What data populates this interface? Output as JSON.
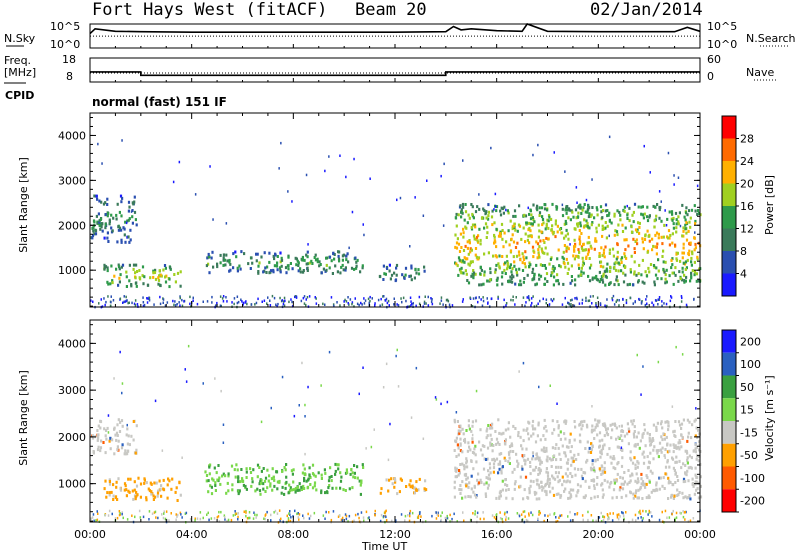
{
  "header": {
    "station": "Fort Hays West (fitACF)",
    "beam": "Beam 20",
    "date": "02/Jan/2014"
  },
  "side_labels": {
    "nsky": "N.Sky",
    "nsearch": "N.Search",
    "freq": "Freq.",
    "freq_unit": "[MHz]",
    "cpid": "CPID",
    "nave": "Nave",
    "noise_max": "10^5",
    "noise_min": "10^0",
    "freq_max": "18",
    "freq_min": "8",
    "nave_max": "60",
    "nave_min": "0"
  },
  "mode_text": "normal (fast) 151 IF",
  "colors": {
    "power": [
      "#1a1aff",
      "#2a4fb0",
      "#3a7a5a",
      "#2e9a4a",
      "#a0d020",
      "#ffb000",
      "#ff6a00",
      "#ff0000"
    ],
    "velocity": [
      "#ff0000",
      "#ff5a00",
      "#ffa000",
      "#c8c8c4",
      "#7ad84a",
      "#3aa040",
      "#2a60c0",
      "#1a1aff"
    ]
  },
  "chart_data": [
    {
      "type": "line",
      "title": "",
      "xlabel": "",
      "ylabel": "",
      "xlim": [
        "00:00",
        "24:00"
      ],
      "y_scale": "log",
      "ylim": [
        1,
        100000
      ],
      "series": [
        {
          "name": "N.Sky",
          "x": [
            0,
            0.2,
            1,
            2,
            4,
            6,
            8,
            10,
            12,
            14,
            14.3,
            14.6,
            15,
            16,
            17,
            17.2,
            18,
            20,
            22,
            23,
            23.5,
            24
          ],
          "values": [
            1000,
            10000,
            3000,
            2500,
            2000,
            2000,
            2000,
            2000,
            2000,
            2500,
            30000,
            6000,
            10000,
            4000,
            3000,
            100000,
            3000,
            2500,
            2500,
            2500,
            20000,
            3000
          ]
        }
      ]
    },
    {
      "type": "line",
      "title": "",
      "xlabel": "",
      "ylabel": "",
      "xlim": [
        "00:00",
        "24:00"
      ],
      "ylim": [
        8,
        18
      ],
      "series": [
        {
          "name": "Freq.",
          "x": [
            0,
            2,
            2,
            14,
            14,
            24
          ],
          "values": [
            12.2,
            12.2,
            10.8,
            10.8,
            12.2,
            12.2
          ]
        },
        {
          "name": "Nave",
          "x": [
            0,
            24
          ],
          "values": [
            15,
            15
          ]
        }
      ]
    },
    {
      "type": "heatmap",
      "title": "",
      "xlabel": "",
      "ylabel": "Slant Range [km]",
      "x_ticks": [
        "00:00",
        "04:00",
        "08:00",
        "12:00",
        "16:00",
        "20:00",
        "00:00"
      ],
      "xlim": [
        0,
        24
      ],
      "ylim": [
        180,
        4500
      ],
      "y_ticks": [
        1000,
        2000,
        3000,
        4000
      ],
      "colorbar": {
        "label": "Power [dB]",
        "ticks": [
          4,
          8,
          12,
          16,
          20,
          24,
          28
        ],
        "range": [
          0,
          32
        ]
      },
      "regions": [
        {
          "name": "a",
          "t0": 0.5,
          "t1": 3.6,
          "r0": 650,
          "r1": 1150,
          "value": 17
        },
        {
          "name": "b",
          "t0": 0.0,
          "t1": 1.8,
          "r0": 1650,
          "r1": 2700,
          "value": 10
        },
        {
          "name": "c",
          "t0": 4.5,
          "t1": 10.7,
          "r0": 950,
          "r1": 1450,
          "value": 12
        },
        {
          "name": "d",
          "t0": 11.3,
          "t1": 13.2,
          "r0": 800,
          "r1": 1150,
          "value": 11
        },
        {
          "name": "e",
          "t0": 14.3,
          "t1": 24.0,
          "r0": 700,
          "r1": 2500,
          "value": 20
        }
      ]
    },
    {
      "type": "heatmap",
      "title": "",
      "xlabel": "Time UT",
      "ylabel": "Slant Range [km]",
      "x_ticks": [
        "00:00",
        "04:00",
        "08:00",
        "12:00",
        "16:00",
        "20:00",
        "00:00"
      ],
      "xlim": [
        0,
        24
      ],
      "ylim": [
        180,
        4500
      ],
      "y_ticks": [
        1000,
        2000,
        3000,
        4000
      ],
      "colorbar": {
        "label": "Velocity [m s⁻¹]",
        "ticks": [
          200,
          100,
          50,
          15,
          -15,
          -50,
          -100,
          -200
        ]
      },
      "regions": [
        {
          "name": "a",
          "t0": 0.5,
          "t1": 3.6,
          "r0": 650,
          "r1": 1150,
          "value": -40
        },
        {
          "name": "b",
          "t0": 0.0,
          "t1": 1.8,
          "r0": 1650,
          "r1": 2400,
          "value": 0
        },
        {
          "name": "c",
          "t0": 4.5,
          "t1": 10.7,
          "r0": 800,
          "r1": 1450,
          "value": 30
        },
        {
          "name": "d",
          "t0": 11.3,
          "t1": 13.2,
          "r0": 800,
          "r1": 1150,
          "value": -30
        },
        {
          "name": "e",
          "t0": 14.3,
          "t1": 24.0,
          "r0": 700,
          "r1": 2400,
          "value": 0
        }
      ]
    }
  ]
}
